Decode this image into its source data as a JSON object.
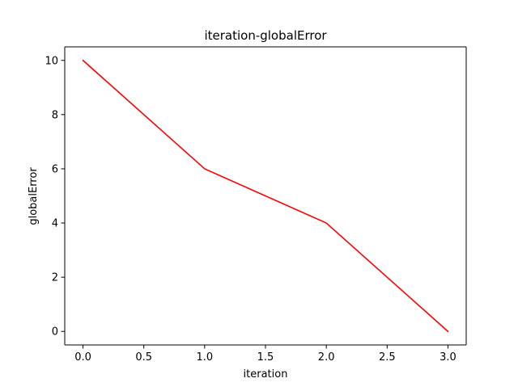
{
  "chart_data": {
    "type": "line",
    "title": "iteration-globalError",
    "xlabel": "iteration",
    "ylabel": "globalError",
    "x": [
      0,
      1,
      2,
      3
    ],
    "series": [
      {
        "values": [
          10,
          6,
          4,
          0
        ],
        "color": "#ff0000"
      }
    ],
    "xlim": [
      -0.15,
      3.15
    ],
    "ylim": [
      -0.5,
      10.5
    ],
    "xticks": [
      0.0,
      0.5,
      1.0,
      1.5,
      2.0,
      2.5,
      3.0
    ],
    "xtick_labels": [
      "0.0",
      "0.5",
      "1.0",
      "1.5",
      "2.0",
      "2.5",
      "3.0"
    ],
    "yticks": [
      0,
      2,
      4,
      6,
      8,
      10
    ],
    "ytick_labels": [
      "0",
      "2",
      "4",
      "6",
      "8",
      "10"
    ],
    "grid": false,
    "legend": "none"
  }
}
